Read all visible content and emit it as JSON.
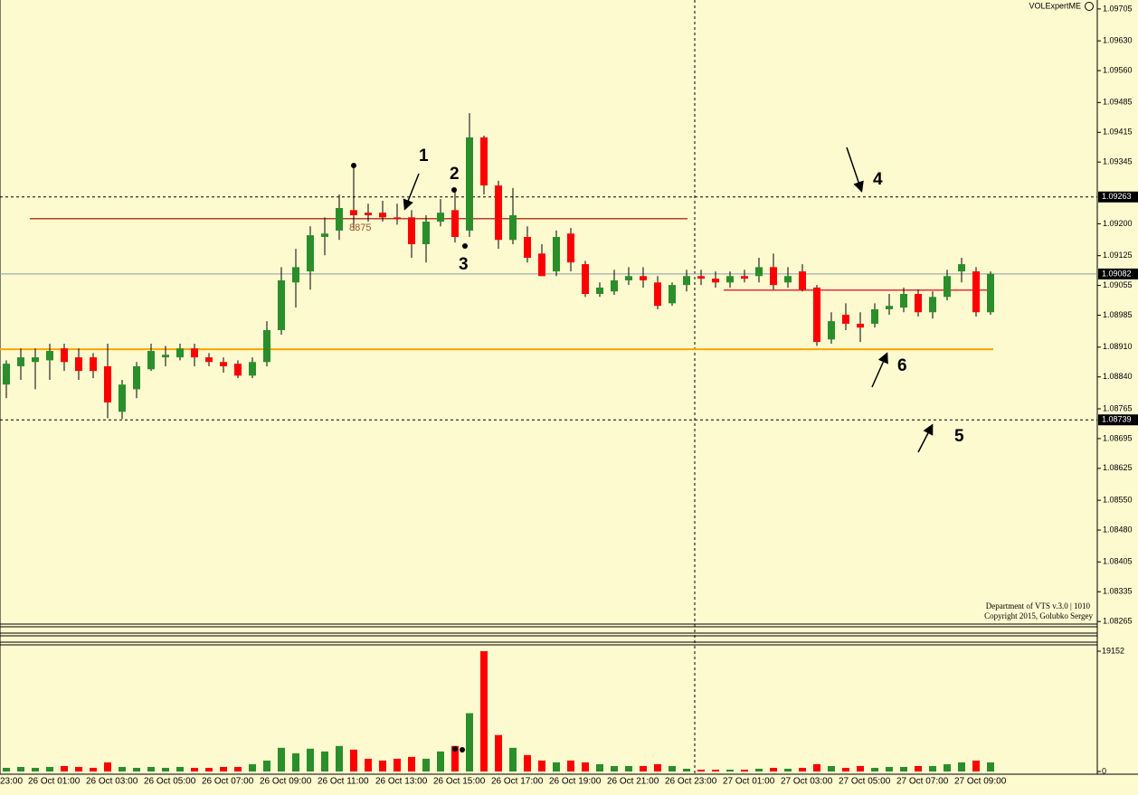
{
  "chart_data": [
    {
      "type": "candlestick",
      "categories": [
        "23:00",
        null,
        null,
        null,
        "26 Oct 01:00",
        null,
        null,
        null,
        "26 Oct 03:00",
        null,
        null,
        null,
        "26 Oct 05:00",
        null,
        null,
        null,
        "26 Oct 07:00",
        null,
        null,
        null,
        "26 Oct 09:00",
        null,
        null,
        null,
        "26 Oct 11:00",
        null,
        null,
        null,
        "26 Oct 13:00",
        null,
        null,
        null,
        "26 Oct 15:00",
        null,
        null,
        null,
        "26 Oct 17:00",
        null,
        null,
        null,
        "26 Oct 19:00",
        null,
        null,
        null,
        "26 Oct 21:00",
        null,
        null,
        null,
        "26 Oct 23:00",
        null,
        null,
        null,
        "27 Oct 01:00",
        null,
        null,
        null,
        "27 Oct 03:00",
        null,
        null,
        null,
        "27 Oct 05:00",
        null,
        null,
        null,
        "27 Oct 07:00",
        null,
        null,
        null,
        "27 Oct 09:00",
        null,
        null
      ],
      "open": [
        1.0887,
        1.0888,
        1.08822,
        1.08865,
        1.08875,
        1.08879,
        1.08907,
        1.08886,
        1.08886,
        1.08865,
        1.08758,
        1.08811,
        1.08858,
        1.08886,
        1.08886,
        1.08907,
        1.08886,
        1.08875,
        1.08871,
        1.08843,
        1.08875,
        1.0895,
        1.09062,
        1.09088,
        1.09169,
        1.09184,
        1.09232,
        1.09226,
        1.09226,
        1.09215,
        1.09215,
        1.09152,
        1.09205,
        1.09232,
        1.09184,
        1.09403,
        1.0929,
        1.09162,
        1.09169,
        1.0913,
        1.09088,
        1.09177,
        1.09105,
        1.09035,
        1.09041,
        1.09067,
        1.09077,
        1.09062,
        1.09013,
        1.09056,
        1.09077,
        1.09071,
        1.09062,
        1.09077,
        1.09077,
        1.09098,
        1.09062,
        1.09088,
        1.0905,
        1.08928,
        1.08986,
        1.08965,
        1.08965,
        1.08999,
        1.09003,
        1.09035,
        1.08992,
        1.09028,
        1.09088,
        1.09088,
        1.08992
      ],
      "high": [
        1.0889,
        1.08895,
        1.08879,
        1.08907,
        1.08907,
        1.08918,
        1.08918,
        1.08907,
        1.08896,
        1.08918,
        1.08833,
        1.08875,
        1.08918,
        1.08913,
        1.08918,
        1.08918,
        1.08896,
        1.08886,
        1.08879,
        1.08886,
        1.08971,
        1.09098,
        1.09141,
        1.09194,
        1.09215,
        1.09269,
        1.09337,
        1.09247,
        1.09254,
        1.09247,
        1.09232,
        1.0922,
        1.09258,
        1.09275,
        1.0946,
        1.09407,
        1.09301,
        1.09284,
        1.09194,
        1.09152,
        1.09184,
        1.0919,
        1.09113,
        1.09062,
        1.09092,
        1.09098,
        1.09098,
        1.09077,
        1.09062,
        1.09092,
        1.09092,
        1.09088,
        1.09088,
        1.09092,
        1.0912,
        1.0913,
        1.09098,
        1.09105,
        1.09056,
        1.08992,
        1.09013,
        1.08992,
        1.09013,
        1.09035,
        1.0905,
        1.09045,
        1.09041,
        1.09092,
        1.0912,
        1.09098,
        1.09088
      ],
      "low": [
        1.0886,
        1.08845,
        1.0879,
        1.08833,
        1.08811,
        1.08833,
        1.08854,
        1.08833,
        1.08837,
        1.08743,
        1.08741,
        1.0879,
        1.08854,
        1.08865,
        1.08879,
        1.08865,
        1.08865,
        1.0885,
        1.08837,
        1.08837,
        1.08865,
        1.08939,
        1.09003,
        1.09045,
        1.09126,
        1.09162,
        1.09184,
        1.09205,
        1.09205,
        1.09198,
        1.0912,
        1.09109,
        1.09194,
        1.09156,
        1.09169,
        1.09269,
        1.09141,
        1.09152,
        1.09109,
        1.09077,
        1.09077,
        1.09088,
        1.09028,
        1.09028,
        1.09033,
        1.09056,
        1.0905,
        1.08999,
        1.09007,
        1.09041,
        1.09056,
        1.0905,
        1.0905,
        1.09062,
        1.09062,
        1.09045,
        1.0905,
        1.09041,
        1.08913,
        1.08918,
        1.0895,
        1.08922,
        1.08956,
        1.08986,
        1.08992,
        1.08982,
        1.08977,
        1.0902,
        1.09062,
        1.08982,
        1.08986
      ],
      "close": [
        1.0888,
        1.0886,
        1.08871,
        1.08886,
        1.08886,
        1.08901,
        1.08875,
        1.08854,
        1.08854,
        1.0878,
        1.08822,
        1.08865,
        1.08901,
        1.08892,
        1.08907,
        1.08886,
        1.08875,
        1.08865,
        1.08843,
        1.08875,
        1.0895,
        1.09067,
        1.09098,
        1.09173,
        1.09177,
        1.09237,
        1.0922,
        1.0922,
        1.09215,
        1.09211,
        1.09152,
        1.09205,
        1.09226,
        1.09169,
        1.09403,
        1.0929,
        1.09162,
        1.0922,
        1.0912,
        1.09077,
        1.09169,
        1.09109,
        1.09035,
        1.0905,
        1.09067,
        1.09077,
        1.09067,
        1.09007,
        1.09056,
        1.09077,
        1.09071,
        1.09062,
        1.09077,
        1.09071,
        1.09098,
        1.09056,
        1.09077,
        1.09045,
        1.08922,
        1.08971,
        1.08965,
        1.08956,
        1.08999,
        1.09007,
        1.09035,
        1.08992,
        1.09028,
        1.09077,
        1.09105,
        1.08992,
        1.09082
      ],
      "up_color": "#2a8f2a",
      "down_color": "#ff0000",
      "ylim": [
        1.08259,
        1.09726
      ],
      "yticks": [
        1.09705,
        {
          "value": 1.0963,
          "label": "1.09630"
        },
        {
          "value": 1.0956,
          "label": "1.09560"
        },
        1.09485,
        1.09415,
        1.09345,
        {
          "value": 1.092,
          "label": "1.09200"
        },
        1.09125,
        1.09055,
        1.08985,
        {
          "value": 1.0891,
          "label": "1.08910"
        },
        {
          "value": 1.0884,
          "label": "1.08840"
        },
        1.08765,
        1.08695,
        1.08625,
        {
          "value": 1.0855,
          "label": "1.08550"
        },
        {
          "value": 1.0848,
          "label": "1.08480"
        },
        1.08405,
        1.08335,
        1.08265
      ],
      "price_lines": [
        {
          "value": 1.09263,
          "style": "dashed"
        },
        {
          "value": 1.09082,
          "style": "solid"
        },
        {
          "value": 1.08739,
          "style": "dashed"
        }
      ],
      "levels": [
        {
          "value": 1.08905,
          "color": "#ffa500"
        },
        {
          "value": 1.09212,
          "color": "#b5402a"
        },
        {
          "value": 1.09044,
          "color": "#e03030"
        }
      ],
      "annotations": [
        "1",
        "2",
        "3",
        "4",
        "5",
        "6",
        "8875"
      ]
    },
    {
      "type": "bar",
      "values": [
        290,
        435,
        580,
        725,
        580,
        725,
        870,
        725,
        580,
        1450,
        725,
        580,
        725,
        580,
        725,
        580,
        580,
        725,
        725,
        1160,
        1740,
        3770,
        2900,
        3625,
        3190,
        4060,
        3480,
        2030,
        1740,
        2030,
        2320,
        2030,
        3190,
        4060,
        9280,
        19152,
        5800,
        3770,
        2610,
        1740,
        1450,
        1740,
        1450,
        1160,
        870,
        870,
        870,
        1160,
        870,
        435,
        290,
        290,
        290,
        290,
        435,
        580,
        435,
        580,
        1160,
        870,
        580,
        870,
        580,
        725,
        725,
        870,
        870,
        1160,
        1450,
        1740,
        1450
      ],
      "ylim": [
        0,
        19152
      ],
      "yticks": [
        0,
        19152
      ]
    }
  ],
  "indicator": {
    "name": "VOLExpertME",
    "credits": [
      "Department of VTS  v.3.0 | 1010",
      "Copyright 2015, Golubko Sergey"
    ]
  }
}
